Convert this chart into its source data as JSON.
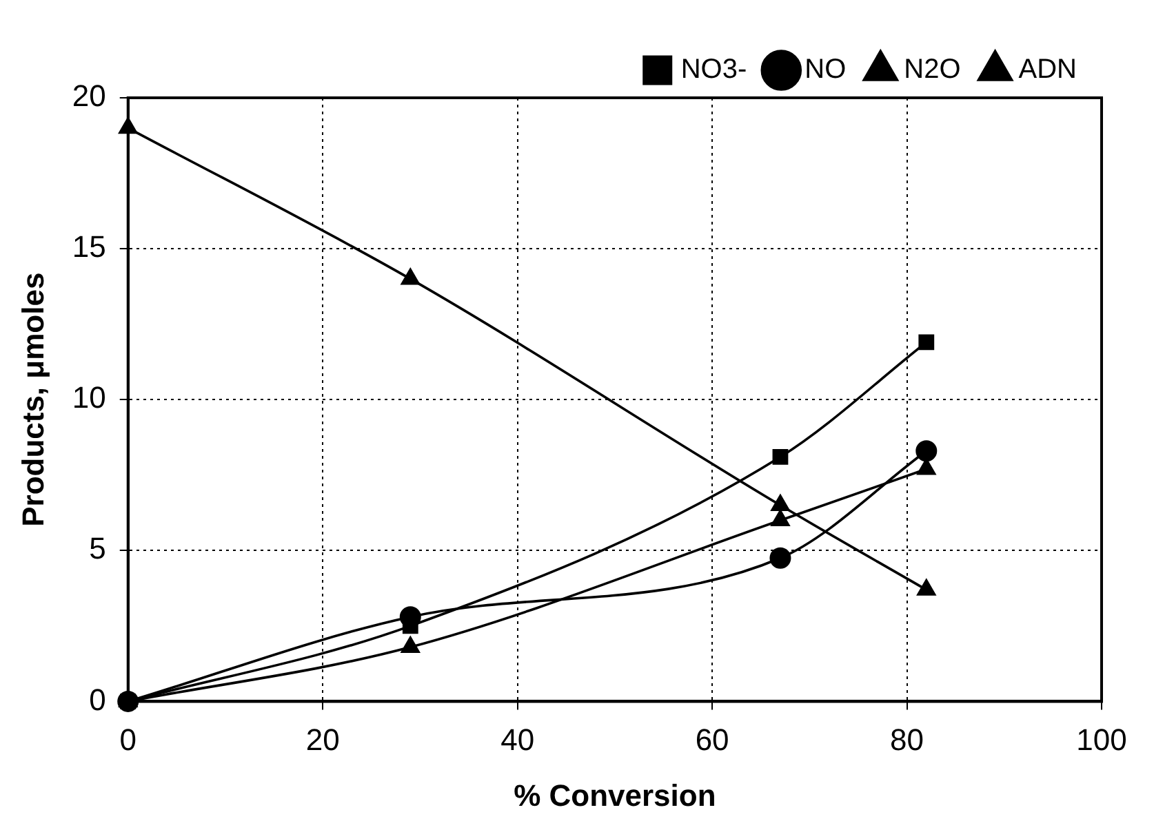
{
  "chart_data": {
    "type": "line",
    "xlabel": "% Conversion",
    "ylabel": "Products, μmoles",
    "xlim": [
      0,
      100
    ],
    "xticks": [
      0,
      20,
      40,
      60,
      80,
      100
    ],
    "ylim": [
      0,
      20
    ],
    "yticks": [
      0,
      5,
      10,
      15,
      20
    ],
    "grid": true,
    "legend": "top right",
    "line_style": "solid",
    "series": [
      {
        "name": "ADN",
        "color": "#000000",
        "marker": "triangle",
        "x": [
          0,
          29,
          67,
          82
        ],
        "values": [
          19,
          14,
          6.5,
          3.7
        ]
      },
      {
        "name": "N2O",
        "color": "#000000",
        "marker": "triangle",
        "x": [
          0,
          29,
          67,
          82
        ],
        "values": [
          0,
          1.8,
          6.0,
          7.7
        ]
      },
      {
        "name": "NO",
        "color": "#000000",
        "marker": "circle",
        "x": [
          0,
          29,
          67,
          82
        ],
        "values": [
          0,
          2.8,
          4.75,
          8.3
        ]
      },
      {
        "name": "NO3-",
        "color": "#000000",
        "marker": "square",
        "x": [
          0,
          29,
          67,
          82
        ],
        "values": [
          0,
          2.5,
          8.1,
          11.9
        ]
      }
    ]
  }
}
